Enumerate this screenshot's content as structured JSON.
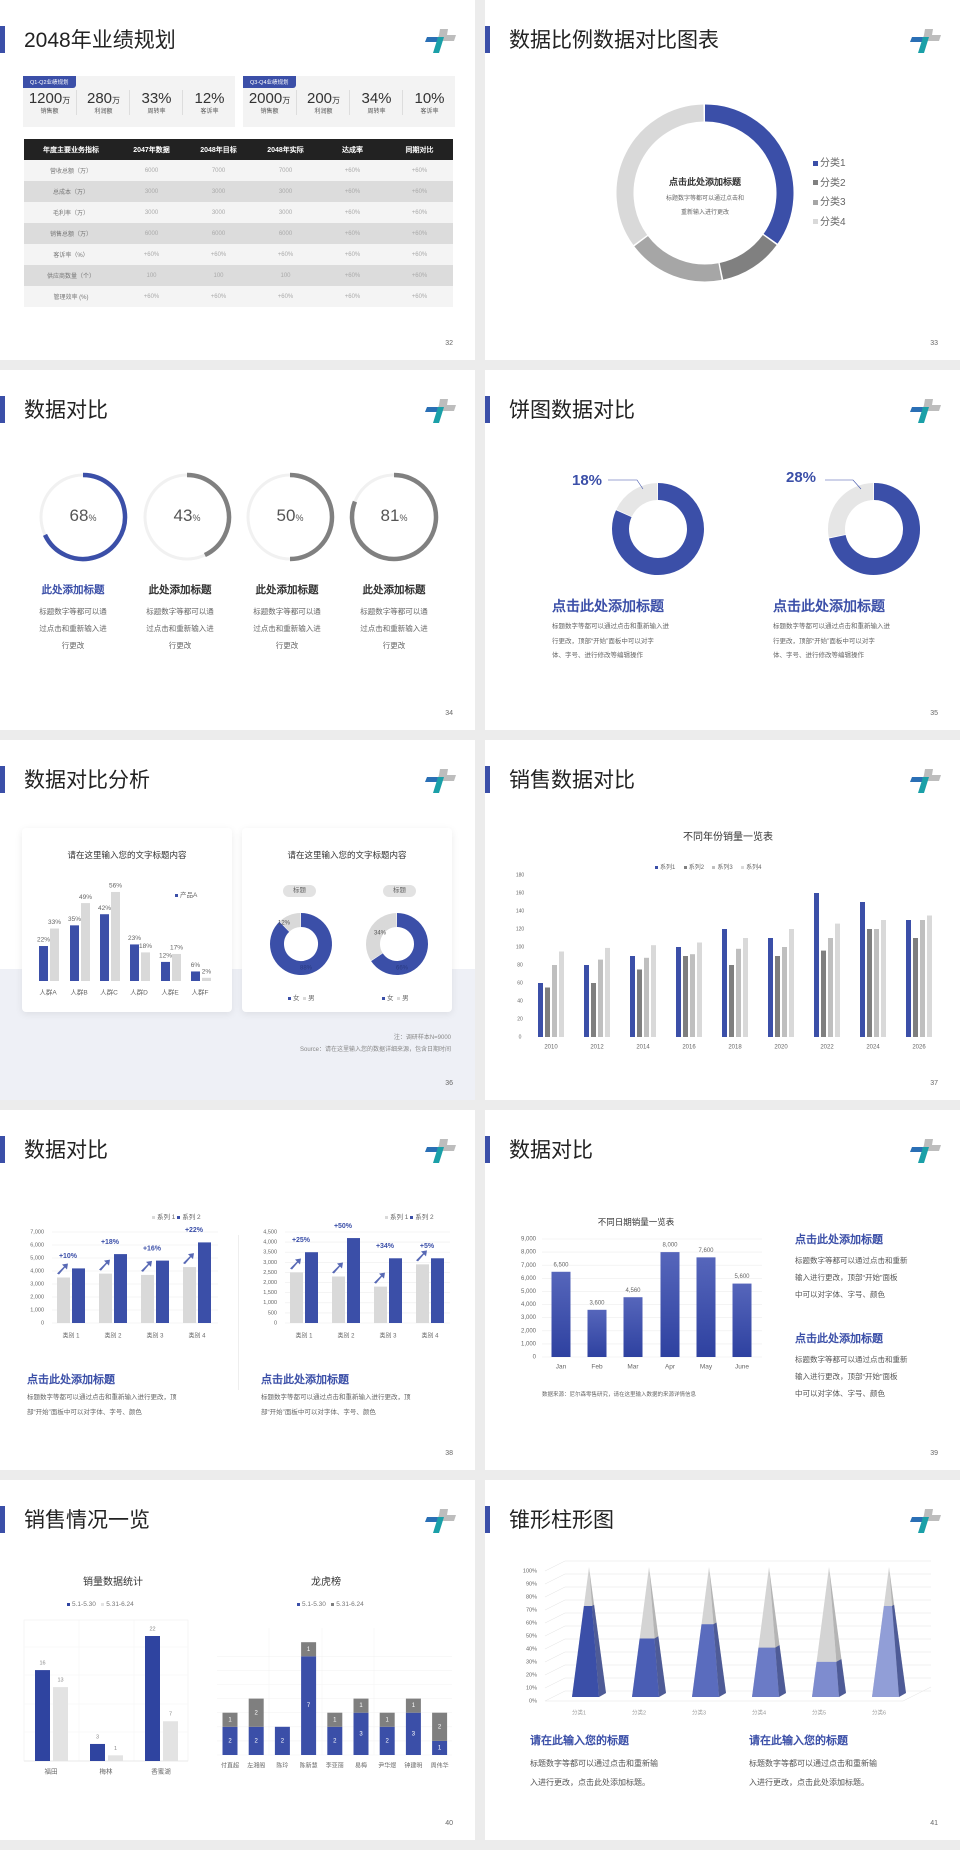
{
  "slides": [
    {
      "title": "2048年业绩规划",
      "page": "32",
      "groups": [
        {
          "tag": "Q1-Q2业绩规划",
          "stats": [
            {
              "value": "1200",
              "unit": "万",
              "label": "销售额"
            },
            {
              "value": "280",
              "unit": "万",
              "label": "利润额"
            },
            {
              "value": "33%",
              "unit": "",
              "label": "周转率"
            },
            {
              "value": "12%",
              "unit": "",
              "label": "客诉率"
            }
          ]
        },
        {
          "tag": "Q3-Q4业绩规划",
          "stats": [
            {
              "value": "2000",
              "unit": "万",
              "label": "销售额"
            },
            {
              "value": "200",
              "unit": "万",
              "label": "利润额"
            },
            {
              "value": "34%",
              "unit": "",
              "label": "周转率"
            },
            {
              "value": "10%",
              "unit": "",
              "label": "客诉率"
            }
          ]
        }
      ],
      "table": {
        "headers": [
          "年度主要业务指标",
          "2047年数据",
          "2048年目标",
          "2048年实际",
          "达成率",
          "同期对比"
        ],
        "rows": [
          [
            "营收总额（万）",
            "6000",
            "7000",
            "7000",
            "+60%",
            "+60%"
          ],
          [
            "总成本（万）",
            "3000",
            "3000",
            "3000",
            "+60%",
            "+60%"
          ],
          [
            "毛利率（万）",
            "3000",
            "3000",
            "3000",
            "+60%",
            "+60%"
          ],
          [
            "销售总额（万）",
            "6000",
            "6000",
            "6000",
            "+60%",
            "+60%"
          ],
          [
            "客诉率（%）",
            "+60%",
            "+60%",
            "+60%",
            "+60%",
            "+60%"
          ],
          [
            "供应商数量（个）",
            "100",
            "100",
            "100",
            "+60%",
            "+60%"
          ],
          [
            "管理效率 (%)",
            "+60%",
            "+60%",
            "+60%",
            "+60%",
            "+60%"
          ]
        ]
      }
    },
    {
      "title": "数据比例数据对比图表",
      "page": "33",
      "center_title": "点击此处添加标题",
      "center_body": [
        "标题数字等都可以通过点击和",
        "重新输入进行更改"
      ]
    },
    {
      "title": "数据对比",
      "page": "34",
      "items": [
        {
          "value": "68",
          "unit": "%",
          "title": "此处添加标题",
          "body": [
            "标题数字等都可以通",
            "过点击和重新输入进",
            "行更改"
          ]
        },
        {
          "value": "43",
          "unit": "%",
          "title": "此处添加标题",
          "body": [
            "标题数字等都可以通",
            "过点击和重新输入进",
            "行更改"
          ]
        },
        {
          "value": "50",
          "unit": "%",
          "title": "此处添加标题",
          "body": [
            "标题数字等都可以通",
            "过点击和重新输入进",
            "行更改"
          ]
        },
        {
          "value": "81",
          "unit": "%",
          "title": "此处添加标题",
          "body": [
            "标题数字等都可以通",
            "过点击和重新输入进",
            "行更改"
          ]
        }
      ]
    },
    {
      "title": "饼图数据对比",
      "page": "35",
      "items": [
        {
          "label": "18%",
          "title": "点击此处添加标题",
          "body": [
            "标题数字等都可以通过点击和重新输入进",
            "行更改，顶部“开始”面板中可以对字",
            "体、字号、进行修改等编辑操作"
          ]
        },
        {
          "label": "28%",
          "title": "点击此处添加标题",
          "body": [
            "标题数字等都可以通过点击和重新输入进",
            "行更改，顶部“开始”面板中可以对字",
            "体、字号、进行修改等编辑操作"
          ]
        }
      ]
    },
    {
      "title": "数据对比分析",
      "page": "36",
      "panels": [
        "请在这里输入您的文字标题内容",
        "请在这里输入您的文字标题内容"
      ],
      "notes": [
        "注：调研样本N=9000",
        "Source：请在这里输入您的数据详细来源，包含日期时间"
      ]
    },
    {
      "title": "销售数据对比",
      "page": "37"
    },
    {
      "title": "数据对比",
      "page": "38",
      "blocks": [
        {
          "title": "点击此处添加标题",
          "body": [
            "标题数字等都可以通过点击和重新输入进行更改，顶",
            "部“开始”面板中可以对字体、字号、颜色"
          ]
        },
        {
          "title": "点击此处添加标题",
          "body": [
            "标题数字等都可以通过点击和重新输入进行更改，顶",
            "部“开始”面板中可以对字体、字号、颜色"
          ]
        }
      ]
    },
    {
      "title": "数据对比",
      "page": "39",
      "source": "数据来源：尼尔森零售研究，请在这里输入数据的来源详情信息",
      "blocks": [
        {
          "title": "点击此处添加标题",
          "body": [
            "标题数字等都可以通过点击和重新",
            "输入进行更改，顶部“开始”面板",
            "中可以对字体、字号、颜色"
          ]
        },
        {
          "title": "点击此处添加标题",
          "body": [
            "标题数字等都可以通过点击和重新",
            "输入进行更改，顶部“开始”面板",
            "中可以对字体、字号、颜色"
          ]
        }
      ]
    },
    {
      "title": "销售情况一览",
      "page": "40"
    },
    {
      "title": "锥形柱形图",
      "page": "41",
      "blocks": [
        {
          "title": "请在此输入您的标题",
          "body": [
            "标题数字等都可以通过点击和重新输",
            "入进行更改，点击此处添加标题。"
          ]
        },
        {
          "title": "请在此输入您的标题",
          "body": [
            "标题数字等都可以通过点击和重新输",
            "入进行更改，点击此处添加标题。"
          ]
        }
      ]
    }
  ],
  "chart_data": [
    {
      "type": "pie",
      "categories": [
        "分类1",
        "分类2",
        "分类3",
        "分类4"
      ],
      "values": [
        35,
        12,
        18,
        35
      ],
      "colors": [
        "#3b4fa8",
        "#808080",
        "#a6a6a6",
        "#d9d9d9"
      ],
      "legend": "right"
    },
    {
      "type": "pie",
      "values": [
        68,
        43,
        50,
        81
      ],
      "colors": [
        "#3b4fa8",
        "#808080",
        "#808080",
        "#808080"
      ]
    },
    {
      "type": "pie",
      "values": [
        82,
        18
      ],
      "colors": [
        "#3b4fa8",
        "#e6e6e6"
      ]
    },
    {
      "type": "pie",
      "values": [
        72,
        28
      ],
      "colors": [
        "#3b4fa8",
        "#e6e6e6"
      ]
    },
    {
      "type": "bar",
      "categories": [
        "人群A",
        "人群B",
        "人群C",
        "人群D",
        "人群E",
        "人群F"
      ],
      "series": [
        {
          "name": "产品A",
          "values": [
            22,
            35,
            42,
            23,
            12,
            6
          ],
          "labels": [
            "22%",
            "35%",
            "42%",
            "23%",
            "12%",
            "6%"
          ]
        },
        {
          "values": [
            33,
            49,
            56,
            18,
            17,
            2
          ],
          "labels": [
            "33%",
            "49%",
            "56%",
            "18%",
            "17%",
            "2%"
          ]
        }
      ],
      "colors": [
        "#3b4fa8",
        "#d9d9d9"
      ],
      "legend": "top-right"
    },
    {
      "type": "pie",
      "tag": "标题",
      "categories": [
        "女",
        "男"
      ],
      "values": [
        88,
        12
      ],
      "labels": [
        "88%",
        "12%"
      ],
      "colors": [
        "#3b4fa8",
        "#d9d9d9"
      ],
      "legend": "bottom"
    },
    {
      "type": "pie",
      "tag": "标题",
      "categories": [
        "女",
        "男"
      ],
      "values": [
        66,
        34
      ],
      "labels": [
        "66%",
        "34%"
      ],
      "colors": [
        "#3b4fa8",
        "#d9d9d9"
      ],
      "legend": "bottom"
    },
    {
      "type": "bar",
      "title": "不同年份销量一览表",
      "categories": [
        "2010",
        "2012",
        "2014",
        "2016",
        "2018",
        "2020",
        "2022",
        "2024",
        "2026"
      ],
      "series": [
        {
          "name": "系列1",
          "values": [
            60,
            80,
            90,
            100,
            120,
            110,
            160,
            150,
            130
          ]
        },
        {
          "name": "系列2",
          "values": [
            55,
            60,
            75,
            90,
            80,
            90,
            96,
            120,
            110
          ]
        },
        {
          "name": "系列3",
          "values": [
            80,
            86,
            88,
            92,
            98,
            100,
            110,
            120,
            130
          ]
        },
        {
          "name": "系列4",
          "values": [
            95,
            99,
            102,
            105,
            110,
            120,
            126,
            130,
            135
          ]
        }
      ],
      "colors": [
        "#3b4fa8",
        "#7f7f7f",
        "#bfbfbf",
        "#d9d9d9"
      ],
      "y_ticks": [
        "0",
        "20",
        "40",
        "60",
        "80",
        "100",
        "120",
        "140",
        "160",
        "180"
      ],
      "ylim": [
        0,
        180
      ],
      "legend": "top"
    },
    {
      "type": "bar",
      "categories": [
        "类别 1",
        "类别 2",
        "类别 3",
        "类别 4"
      ],
      "series": [
        {
          "name": "系列 1",
          "values": [
            3500,
            3800,
            3700,
            4300
          ]
        },
        {
          "name": "系列 2",
          "values": [
            4200,
            5300,
            4800,
            6200
          ]
        }
      ],
      "growth": [
        "+10%",
        "+18%",
        "+16%",
        "+22%"
      ],
      "colors": [
        "#d9d9d9",
        "#3b4fa8"
      ],
      "y_ticks": [
        "0",
        "1,000",
        "2,000",
        "3,000",
        "4,000",
        "5,000",
        "6,000",
        "7,000"
      ],
      "ylim": [
        0,
        7000
      ],
      "legend": "top-right"
    },
    {
      "type": "bar",
      "categories": [
        "类别 1",
        "类别 2",
        "类别 3",
        "类别 4"
      ],
      "series": [
        {
          "name": "系列 1",
          "values": [
            2500,
            2300,
            1800,
            2900
          ]
        },
        {
          "name": "系列 2",
          "values": [
            3500,
            4200,
            3200,
            3200
          ]
        }
      ],
      "growth": [
        "+25%",
        "+50%",
        "+34%",
        "+5%"
      ],
      "colors": [
        "#d9d9d9",
        "#3b4fa8"
      ],
      "y_ticks": [
        "0",
        "500",
        "1,000",
        "1,500",
        "2,000",
        "2,500",
        "3,000",
        "3,500",
        "4,000",
        "4,500"
      ],
      "ylim": [
        0,
        4500
      ],
      "legend": "top-right"
    },
    {
      "type": "bar",
      "title": "不同日期销量一览表",
      "categories": [
        "Jan",
        "Feb",
        "Mar",
        "Apr",
        "May",
        "June"
      ],
      "values": [
        6500,
        3600,
        4560,
        8000,
        7600,
        5600
      ],
      "labels": [
        "6,500",
        "3,600",
        "4,560",
        "8,000",
        "7,600",
        "5,600"
      ],
      "y_ticks": [
        "0",
        "1,000",
        "2,000",
        "3,000",
        "4,000",
        "5,000",
        "6,000",
        "7,000",
        "8,000",
        "9,000"
      ],
      "ylim": [
        0,
        9000
      ],
      "colors": [
        "#3b4fa8"
      ]
    },
    {
      "type": "bar",
      "title": "销量数据统计",
      "categories": [
        "福田",
        "梅林",
        "香蜜湖"
      ],
      "series": [
        {
          "name": "5.1-5.30",
          "values": [
            16,
            3,
            22
          ]
        },
        {
          "name": "5.31-6.24",
          "values": [
            13,
            1,
            7
          ]
        }
      ],
      "colors": [
        "#2f44a0",
        "#e3e3e3"
      ],
      "legend": "top"
    },
    {
      "type": "bar",
      "stacked": true,
      "title": "龙虎榜",
      "categories": [
        "付直超",
        "左湘阁",
        "陈玲",
        "陈新慧",
        "李亚丽",
        "易梅",
        "尹华煜",
        "钟建明",
        "周伟华"
      ],
      "series": [
        {
          "name": "5.1-5.30",
          "values": [
            2,
            2,
            2,
            7,
            2,
            3,
            2,
            3,
            1
          ]
        },
        {
          "name": "5.31-6.24",
          "values": [
            1,
            2,
            0,
            1,
            1,
            1,
            1,
            1,
            2
          ]
        }
      ],
      "colors": [
        "#3b4fa8",
        "#7f7f7f"
      ],
      "legend": "top"
    },
    {
      "type": "bar",
      "shape": "cone",
      "categories": [
        "分类1",
        "分类2",
        "分类3",
        "分类4",
        "分类5",
        "分类6"
      ],
      "values": [
        70,
        45,
        56,
        38,
        27,
        70
      ],
      "y_ticks": [
        "0%",
        "10%",
        "20%",
        "30%",
        "40%",
        "50%",
        "60%",
        "70%",
        "80%",
        "90%",
        "100%"
      ],
      "ylim": [
        0,
        100
      ],
      "colors": [
        "#3b4fa8",
        "#4a5db4",
        "#5a6cbe",
        "#6b7bc6",
        "#7e8ccf",
        "#919ed7"
      ]
    }
  ]
}
